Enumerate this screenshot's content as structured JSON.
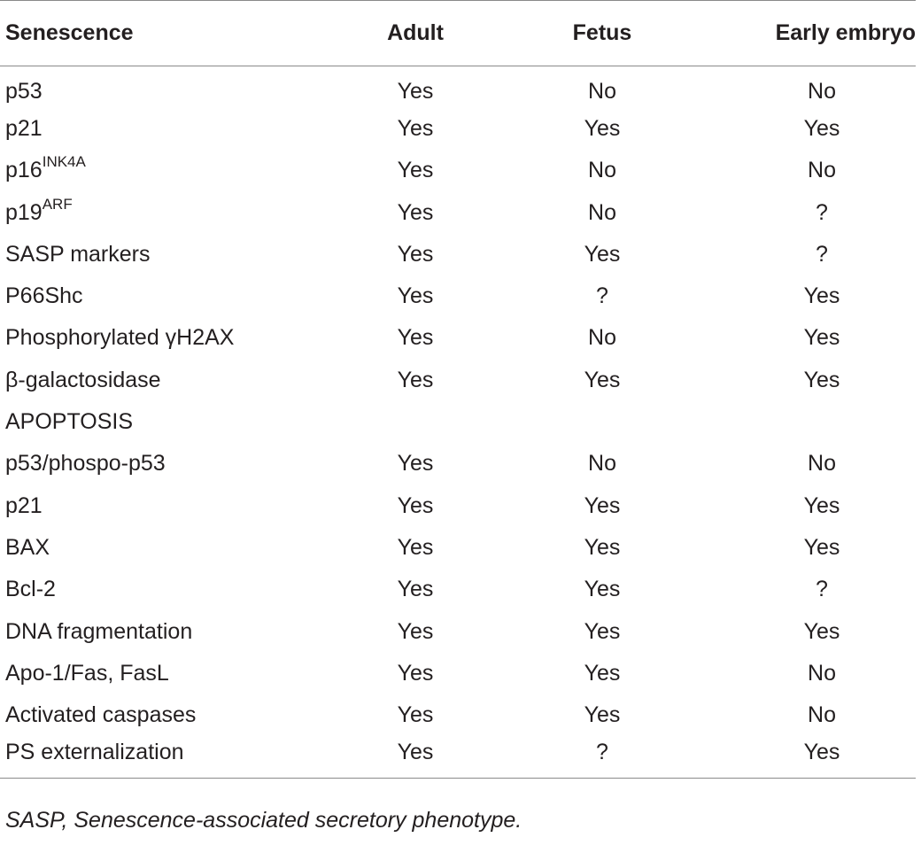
{
  "header": {
    "col0": "Senescence",
    "col1": "Adult",
    "col2": "Fetus",
    "col3": "Early embryo"
  },
  "rows": [
    {
      "label": "p53",
      "sup": "",
      "adult": "Yes",
      "fetus": "No",
      "embryo": "No"
    },
    {
      "label": "p21",
      "sup": "",
      "adult": "Yes",
      "fetus": "Yes",
      "embryo": "Yes"
    },
    {
      "label": "p16",
      "sup": "INK4A",
      "adult": "Yes",
      "fetus": "No",
      "embryo": "No"
    },
    {
      "label": "p19",
      "sup": "ARF",
      "adult": "Yes",
      "fetus": "No",
      "embryo": "?"
    },
    {
      "label": "SASP markers",
      "sup": "",
      "adult": "Yes",
      "fetus": "Yes",
      "embryo": "?"
    },
    {
      "label": "P66Shc",
      "sup": "",
      "adult": "Yes",
      "fetus": "?",
      "embryo": "Yes"
    },
    {
      "label": "Phosphorylated γH2AX",
      "sup": "",
      "adult": "Yes",
      "fetus": "No",
      "embryo": "Yes"
    },
    {
      "label": "β-galactosidase",
      "sup": "",
      "adult": "Yes",
      "fetus": "Yes",
      "embryo": "Yes"
    },
    {
      "label": "APOPTOSIS",
      "sup": "",
      "adult": "",
      "fetus": "",
      "embryo": ""
    },
    {
      "label": "p53/phospo-p53",
      "sup": "",
      "adult": "Yes",
      "fetus": "No",
      "embryo": "No"
    },
    {
      "label": "p21",
      "sup": "",
      "adult": "Yes",
      "fetus": "Yes",
      "embryo": "Yes"
    },
    {
      "label": "BAX",
      "sup": "",
      "adult": "Yes",
      "fetus": "Yes",
      "embryo": "Yes"
    },
    {
      "label": "Bcl-2",
      "sup": "",
      "adult": "Yes",
      "fetus": "Yes",
      "embryo": "?"
    },
    {
      "label": "DNA fragmentation",
      "sup": "",
      "adult": "Yes",
      "fetus": "Yes",
      "embryo": "Yes"
    },
    {
      "label": "Apo-1/Fas, FasL",
      "sup": "",
      "adult": "Yes",
      "fetus": "Yes",
      "embryo": "No"
    },
    {
      "label": "Activated caspases",
      "sup": "",
      "adult": "Yes",
      "fetus": "Yes",
      "embryo": "No"
    },
    {
      "label": "PS externalization",
      "sup": "",
      "adult": "Yes",
      "fetus": "?",
      "embryo": "Yes"
    }
  ],
  "footnote": "SASP, Senescence-associated secretory phenotype."
}
